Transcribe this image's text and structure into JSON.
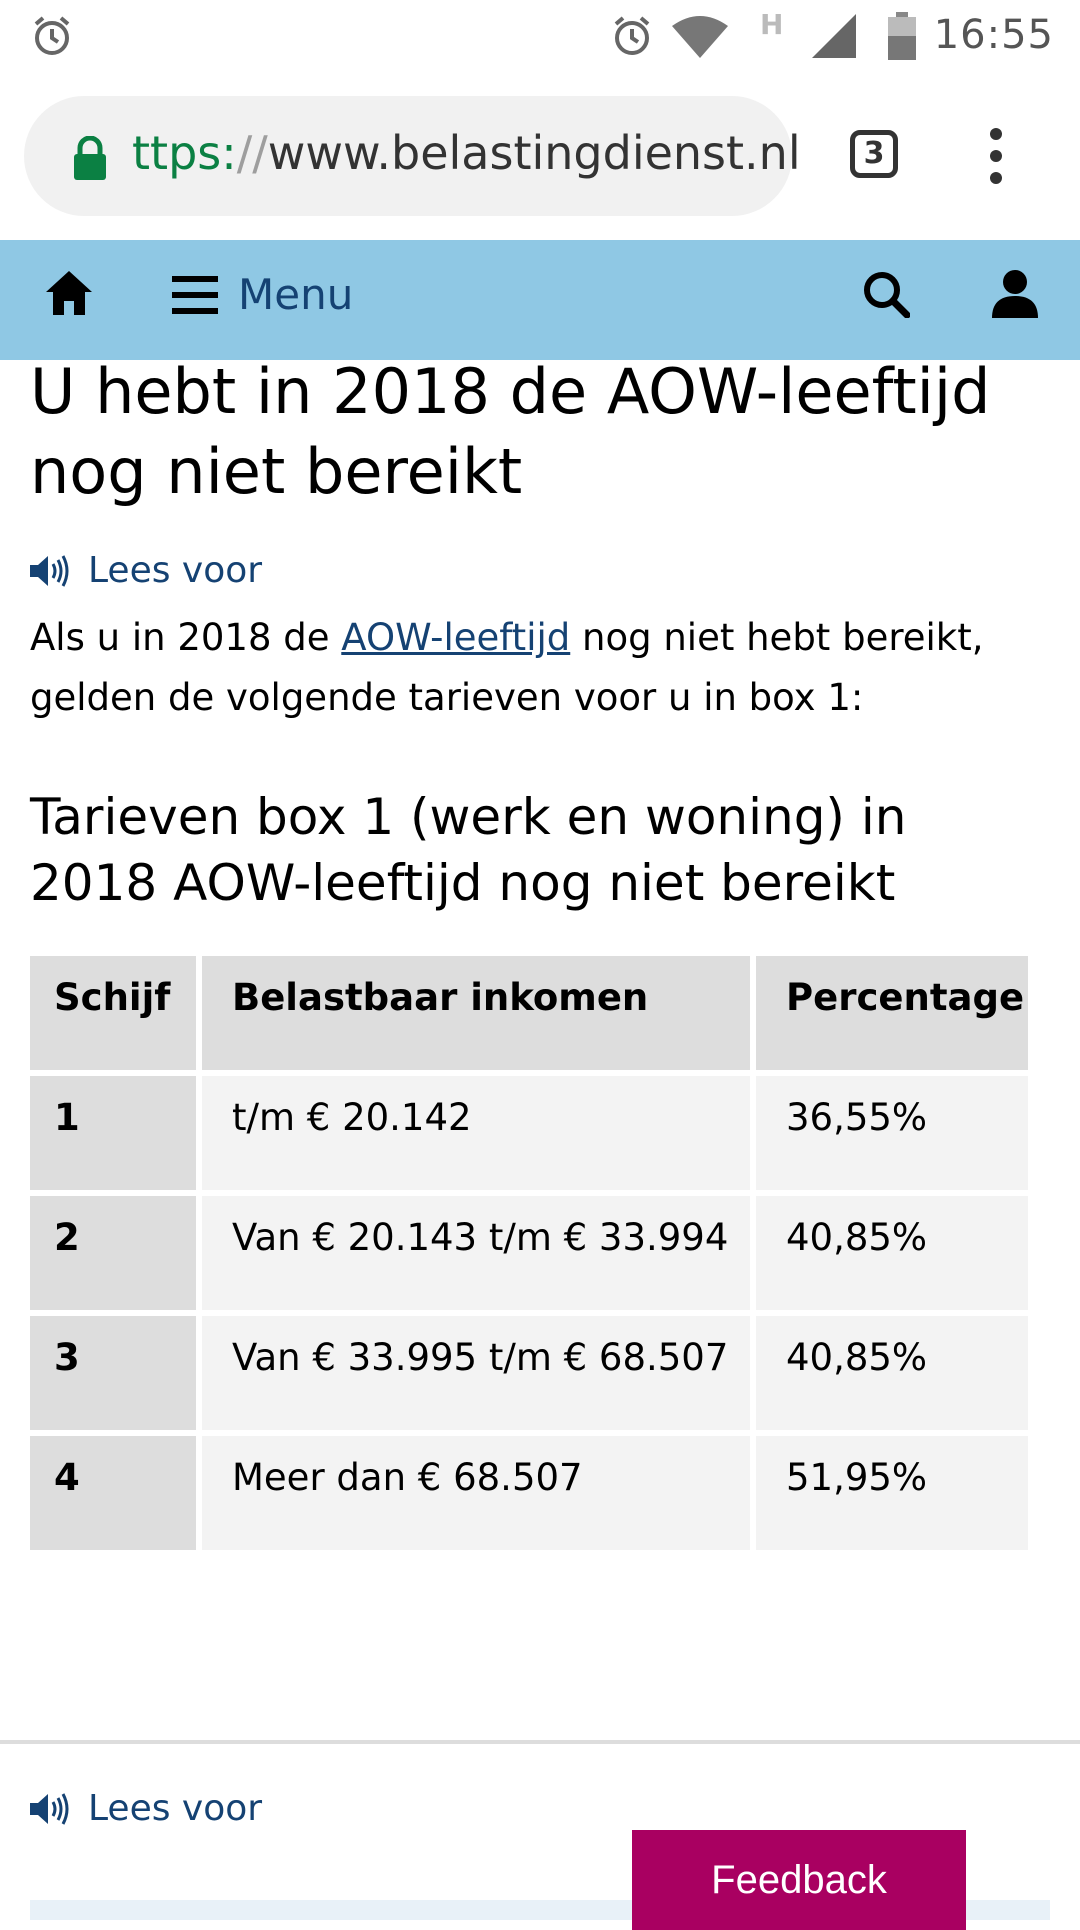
{
  "status_bar": {
    "time": "16:55",
    "network_label": "H",
    "icons": [
      "alarm-icon",
      "alarm-icon",
      "wifi-icon",
      "signal-icon",
      "battery-icon"
    ]
  },
  "browser": {
    "url_scheme": "ttps:",
    "url_sep": "//",
    "url_host": "www.belastingdienst.nl",
    "tab_count": "3"
  },
  "nav": {
    "menu_label": "Menu"
  },
  "page": {
    "title": "U hebt in 2018 de AOW-leeftijd nog niet bereikt",
    "read_aloud": "Lees voor",
    "intro_before": "Als u in 2018 de ",
    "intro_link": "AOW-leeftijd",
    "intro_after": " nog niet hebt bereikt, gelden de volgende tarieven voor u in box 1:",
    "table_title": "Tarieven box 1 (werk en woning) in 2018 AOW-leeftijd nog niet bereikt",
    "table": {
      "headers": [
        "Schijf",
        "Belastbaar inkomen",
        "Percentage"
      ],
      "rows": [
        [
          "1",
          "t/m € 20.142",
          "36,55%"
        ],
        [
          "2",
          "Van € 20.143 t/m € 33.994",
          "40,85%"
        ],
        [
          "3",
          "Van € 33.995 t/m € 68.507",
          "40,85%"
        ],
        [
          "4",
          "Meer dan € 68.507",
          "51,95%"
        ]
      ]
    },
    "read_aloud_bottom": "Lees voor",
    "feedback_label": "Feedback"
  },
  "colors": {
    "nav_bg": "#8fc8e4",
    "link": "#154273",
    "feedback_bg": "#a90061",
    "secure_green": "#0b8043"
  }
}
